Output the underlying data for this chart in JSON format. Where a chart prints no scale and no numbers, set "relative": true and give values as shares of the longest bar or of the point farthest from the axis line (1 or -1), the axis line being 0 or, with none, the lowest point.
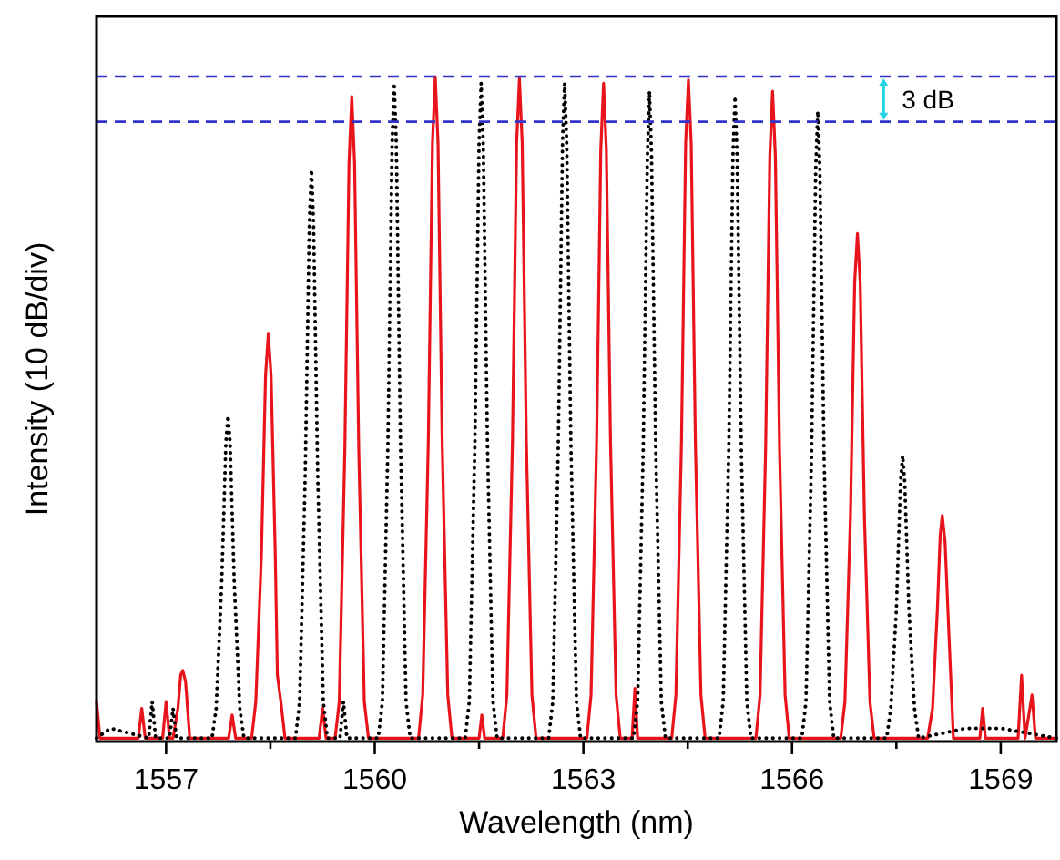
{
  "chart_data": {
    "type": "line",
    "relative": true,
    "xlabel": "Wavelength (nm)",
    "ylabel": "Intensity (10 dB/div)",
    "xlim": [
      1556,
      1569.8
    ],
    "xticks": [
      1557,
      {
        "value": 1558.5,
        "label": null
      },
      1560,
      {
        "value": 1561.5,
        "label": null
      },
      1563,
      {
        "value": 1564.5,
        "label": null
      },
      1566,
      {
        "value": 1567.5,
        "label": null
      },
      1569
    ],
    "series": [
      {
        "color": "#e8141c",
        "line_style": "solid",
        "x": [
          1556.0,
          1556.05,
          1556.6,
          1556.65,
          1556.7,
          1556.95,
          1557.0,
          1557.05,
          1557.1,
          1557.17,
          1557.21,
          1557.24,
          1557.28,
          1557.34,
          1557.9,
          1557.95,
          1558.0,
          1558.23,
          1558.29,
          1558.37,
          1558.43,
          1558.47,
          1558.51,
          1558.57,
          1558.6,
          1558.65,
          1558.71,
          1559.2,
          1559.25,
          1559.3,
          1559.43,
          1559.49,
          1559.57,
          1559.63,
          1559.67,
          1559.71,
          1559.77,
          1559.85,
          1559.91,
          1560.63,
          1560.69,
          1560.77,
          1560.83,
          1560.87,
          1560.91,
          1560.97,
          1561.05,
          1561.11,
          1561.5,
          1561.54,
          1561.58,
          1561.84,
          1561.9,
          1561.98,
          1562.04,
          1562.08,
          1562.12,
          1562.18,
          1562.26,
          1562.32,
          1563.05,
          1563.11,
          1563.19,
          1563.25,
          1563.29,
          1563.33,
          1563.39,
          1563.47,
          1563.53,
          1563.7,
          1563.74,
          1563.78,
          1564.27,
          1564.33,
          1564.41,
          1564.47,
          1564.51,
          1564.55,
          1564.61,
          1564.69,
          1564.75,
          1565.48,
          1565.54,
          1565.62,
          1565.68,
          1565.72,
          1565.76,
          1565.82,
          1565.9,
          1565.96,
          1566.7,
          1566.76,
          1566.84,
          1566.9,
          1566.94,
          1566.98,
          1567.04,
          1567.12,
          1567.18,
          1567.95,
          1568.02,
          1568.09,
          1568.13,
          1568.16,
          1568.2,
          1568.26,
          1568.32,
          1568.7,
          1568.74,
          1568.78,
          1569.25,
          1569.3,
          1569.35,
          1569.45,
          1569.5,
          1569.8
        ],
        "values": [
          0.06,
          0.005,
          0.005,
          0.05,
          0.005,
          0.005,
          0.06,
          0.005,
          0.005,
          0.05,
          0.1,
          0.107,
          0.09,
          0.005,
          0.005,
          0.04,
          0.005,
          0.005,
          0.06,
          0.28,
          0.55,
          0.614,
          0.55,
          0.28,
          0.1,
          0.06,
          0.005,
          0.005,
          0.05,
          0.005,
          0.005,
          0.06,
          0.44,
          0.87,
          0.97,
          0.87,
          0.44,
          0.06,
          0.005,
          0.005,
          0.07,
          0.45,
          0.9,
          1,
          0.9,
          0.45,
          0.07,
          0.005,
          0.005,
          0.04,
          0.005,
          0.005,
          0.07,
          0.45,
          0.9,
          0.997,
          0.9,
          0.45,
          0.07,
          0.005,
          0.005,
          0.07,
          0.45,
          0.89,
          0.99,
          0.89,
          0.45,
          0.07,
          0.005,
          0.005,
          0.08,
          0.005,
          0.005,
          0.07,
          0.45,
          0.9,
          0.995,
          0.9,
          0.45,
          0.07,
          0.005,
          0.005,
          0.07,
          0.44,
          0.88,
          0.978,
          0.88,
          0.44,
          0.07,
          0.005,
          0.005,
          0.06,
          0.34,
          0.69,
          0.764,
          0.69,
          0.34,
          0.06,
          0.005,
          0.005,
          0.05,
          0.2,
          0.31,
          0.34,
          0.3,
          0.15,
          0.005,
          0.005,
          0.05,
          0.005,
          0.005,
          0.1,
          0.005,
          0.07,
          0.005,
          0.005
        ]
      },
      {
        "color": "#000000",
        "line_style": "dotted",
        "x": [
          1556.0,
          1556.2,
          1556.75,
          1556.8,
          1556.85,
          1557.05,
          1557.1,
          1557.15,
          1557.66,
          1557.72,
          1557.8,
          1557.86,
          1557.89,
          1557.92,
          1557.98,
          1558.06,
          1558.12,
          1558.86,
          1558.92,
          1559.0,
          1559.06,
          1559.09,
          1559.12,
          1559.18,
          1559.26,
          1559.32,
          1559.5,
          1559.55,
          1559.6,
          1560.05,
          1560.11,
          1560.19,
          1560.25,
          1560.28,
          1560.31,
          1560.37,
          1560.45,
          1560.51,
          1561.3,
          1561.36,
          1561.44,
          1561.5,
          1561.53,
          1561.56,
          1561.62,
          1561.7,
          1561.76,
          1562.5,
          1562.56,
          1562.64,
          1562.7,
          1562.73,
          1562.76,
          1562.82,
          1562.9,
          1562.96,
          1563.72,
          1563.78,
          1563.86,
          1563.92,
          1563.95,
          1563.98,
          1564.04,
          1564.12,
          1564.18,
          1564.95,
          1565.01,
          1565.09,
          1565.15,
          1565.18,
          1565.21,
          1565.27,
          1565.35,
          1565.41,
          1566.14,
          1566.2,
          1566.28,
          1566.34,
          1566.37,
          1566.4,
          1566.46,
          1566.54,
          1566.6,
          1567.36,
          1567.42,
          1567.5,
          1567.56,
          1567.59,
          1567.62,
          1567.68,
          1567.76,
          1567.82,
          1568.5,
          1569.0,
          1569.8
        ],
        "values": [
          0.005,
          0.02,
          0.005,
          0.06,
          0.005,
          0.005,
          0.05,
          0.005,
          0.005,
          0.05,
          0.24,
          0.45,
          0.49,
          0.45,
          0.24,
          0.05,
          0.005,
          0.005,
          0.06,
          0.4,
          0.78,
          0.86,
          0.78,
          0.4,
          0.06,
          0.005,
          0.005,
          0.06,
          0.005,
          0.005,
          0.06,
          0.45,
          0.9,
          0.99,
          0.9,
          0.45,
          0.06,
          0.005,
          0.005,
          0.06,
          0.45,
          0.9,
          0.99,
          0.9,
          0.45,
          0.06,
          0.005,
          0.005,
          0.06,
          0.45,
          0.9,
          0.99,
          0.9,
          0.45,
          0.06,
          0.005,
          0.005,
          0.06,
          0.44,
          0.88,
          0.978,
          0.88,
          0.44,
          0.06,
          0.005,
          0.005,
          0.06,
          0.44,
          0.88,
          0.97,
          0.88,
          0.44,
          0.06,
          0.005,
          0.005,
          0.06,
          0.43,
          0.86,
          0.948,
          0.86,
          0.43,
          0.06,
          0.005,
          0.005,
          0.05,
          0.2,
          0.39,
          0.43,
          0.39,
          0.2,
          0.05,
          0.005,
          0.02,
          0.02,
          0.005
        ]
      }
    ],
    "ref_lines": [
      {
        "axis": "y",
        "value": 1,
        "color": "#3333cc",
        "line_style": "dashed"
      },
      {
        "axis": "y",
        "value": 0.932,
        "color": "#3333cc",
        "line_style": "dashed"
      }
    ],
    "annotations": [
      "3 dB"
    ]
  }
}
